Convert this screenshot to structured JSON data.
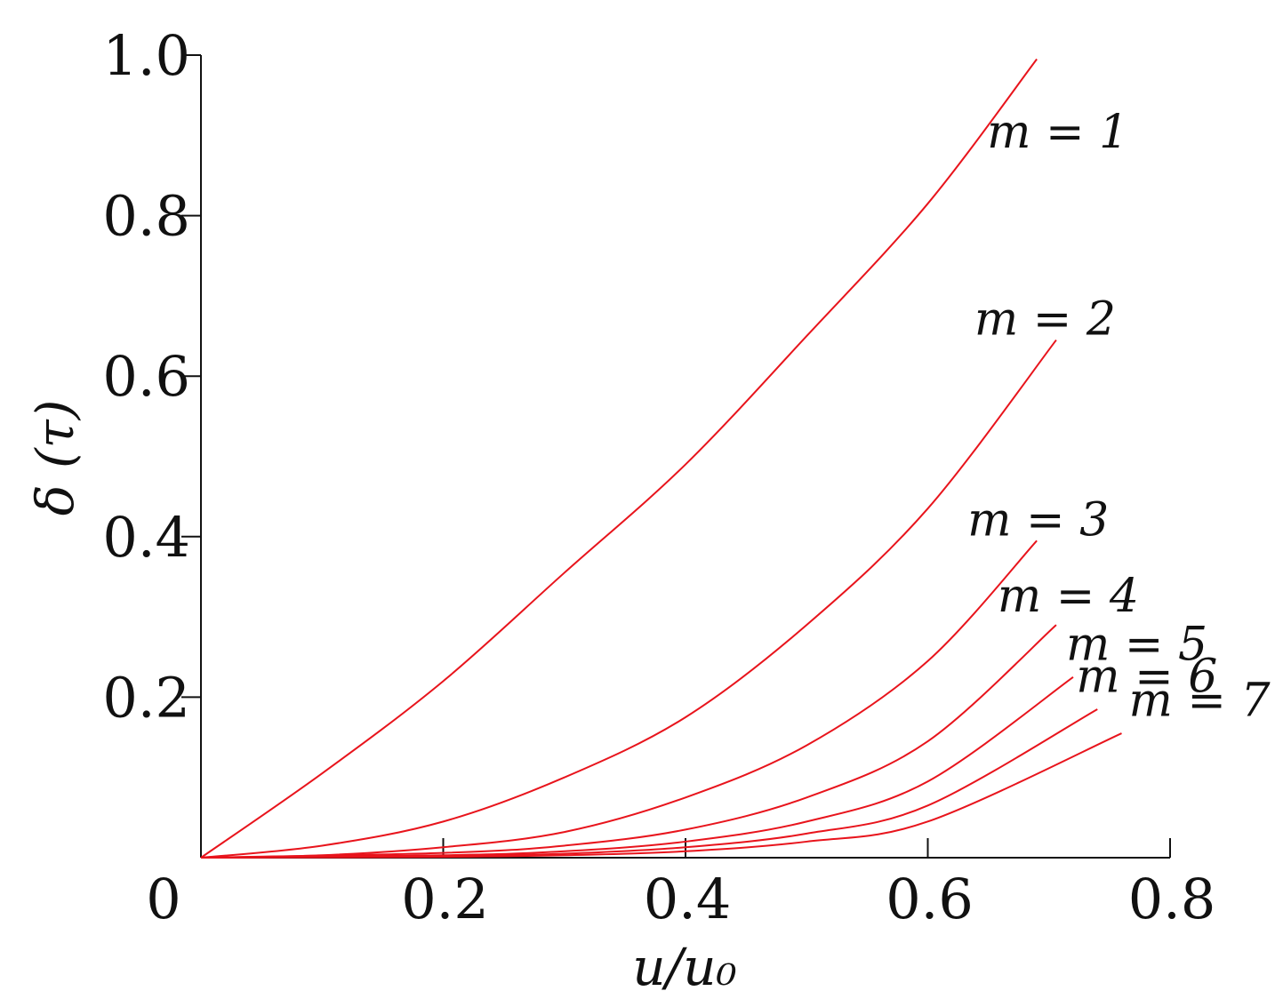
{
  "chart_data": {
    "type": "line",
    "title": "",
    "xlabel": "u/u₀",
    "ylabel": "δ (τ)",
    "xlim": [
      0,
      0.8
    ],
    "ylim": [
      0,
      1.0
    ],
    "x_ticks": [
      {
        "value": 0,
        "label": "0"
      },
      {
        "value": 0.2,
        "label": "0.2"
      },
      {
        "value": 0.4,
        "label": "0.4"
      },
      {
        "value": 0.6,
        "label": "0.6"
      },
      {
        "value": 0.8,
        "label": "0.8"
      }
    ],
    "y_ticks": [
      {
        "value": 0.2,
        "label": "0.2"
      },
      {
        "value": 0.4,
        "label": "0.4"
      },
      {
        "value": 0.6,
        "label": "0.6"
      },
      {
        "value": 0.8,
        "label": "0.8"
      },
      {
        "value": 1.0,
        "label": "1.0"
      }
    ],
    "grid": false,
    "line_color": "#e8141c",
    "series": [
      {
        "name": "m = 1",
        "x": [
          0,
          0.1,
          0.2,
          0.3,
          0.4,
          0.5,
          0.6,
          0.69
        ],
        "y": [
          0,
          0.105,
          0.22,
          0.355,
          0.49,
          0.65,
          0.815,
          0.995
        ]
      },
      {
        "name": "m = 2",
        "x": [
          0,
          0.1,
          0.2,
          0.3,
          0.4,
          0.5,
          0.6,
          0.706
        ],
        "y": [
          0,
          0.015,
          0.045,
          0.1,
          0.175,
          0.29,
          0.435,
          0.645
        ]
      },
      {
        "name": "m = 3",
        "x": [
          0,
          0.1,
          0.2,
          0.3,
          0.4,
          0.5,
          0.6,
          0.69
        ],
        "y": [
          0,
          0.003,
          0.013,
          0.032,
          0.075,
          0.14,
          0.245,
          0.395
        ]
      },
      {
        "name": "m = 4",
        "x": [
          0,
          0.2,
          0.3,
          0.4,
          0.5,
          0.6,
          0.706
        ],
        "y": [
          0,
          0.006,
          0.015,
          0.035,
          0.075,
          0.145,
          0.29
        ]
      },
      {
        "name": "m = 5",
        "x": [
          0,
          0.2,
          0.3,
          0.4,
          0.5,
          0.6,
          0.72
        ],
        "y": [
          0,
          0.003,
          0.008,
          0.02,
          0.045,
          0.095,
          0.225
        ]
      },
      {
        "name": "m = 6",
        "x": [
          0,
          0.2,
          0.3,
          0.4,
          0.5,
          0.6,
          0.74
        ],
        "y": [
          0,
          0.002,
          0.005,
          0.013,
          0.03,
          0.065,
          0.185
        ]
      },
      {
        "name": "m = 7",
        "x": [
          0,
          0.2,
          0.3,
          0.4,
          0.5,
          0.6,
          0.76
        ],
        "y": [
          0,
          0.001,
          0.003,
          0.008,
          0.02,
          0.045,
          0.155
        ]
      }
    ]
  }
}
